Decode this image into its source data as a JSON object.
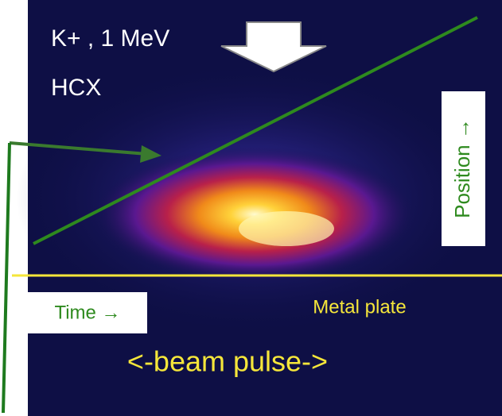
{
  "labels": {
    "species": "K+ , 1 MeV",
    "source": "HCX",
    "position": "Position →",
    "time": "Time →",
    "plate": "Metal plate",
    "pulse": "<-beam pulse->"
  }
}
